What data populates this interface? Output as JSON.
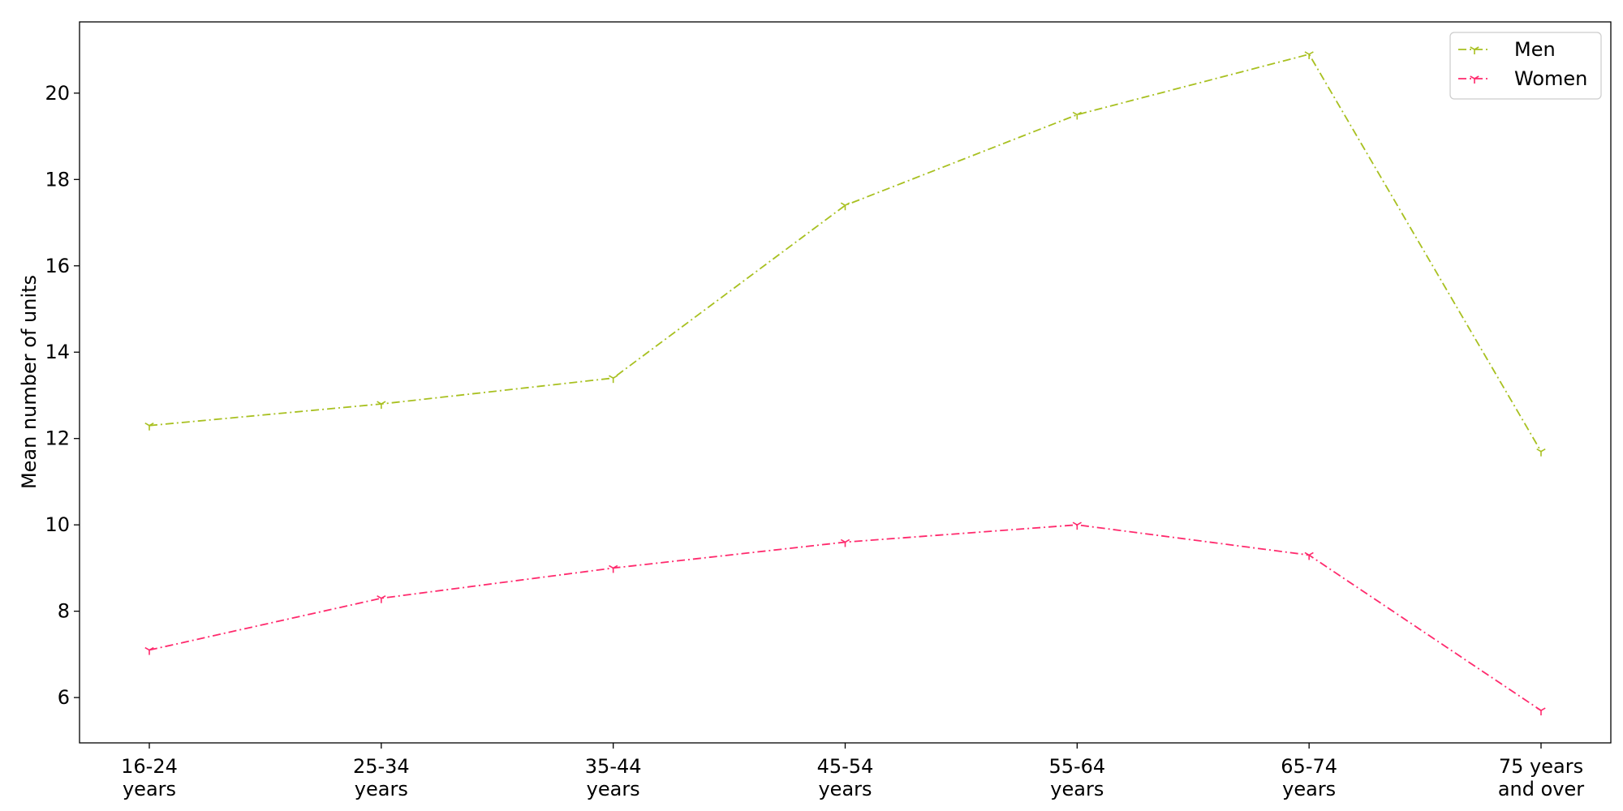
{
  "chart_data": {
    "type": "line",
    "title": "",
    "xlabel": "",
    "ylabel": "Mean number of units",
    "categories": [
      [
        "16-24",
        "years"
      ],
      [
        "25-34",
        "years"
      ],
      [
        "35-44",
        "years"
      ],
      [
        "45-54",
        "years"
      ],
      [
        "55-64",
        "years"
      ],
      [
        "65-74",
        "years"
      ],
      [
        "75 years",
        "and over"
      ]
    ],
    "ylim": [
      4.95,
      21.65
    ],
    "yticks": [
      6,
      8,
      10,
      12,
      14,
      16,
      18,
      20
    ],
    "grid": false,
    "legend_position": "top-right",
    "series": [
      {
        "name": "Men",
        "color": "#a8c020",
        "line_style": "dash-dot",
        "marker": "tri-down",
        "values": [
          12.3,
          12.8,
          13.4,
          17.4,
          19.5,
          20.9,
          11.7
        ]
      },
      {
        "name": "Women",
        "color": "#ff2a6d",
        "line_style": "dash-dot",
        "marker": "tri-down",
        "values": [
          7.1,
          8.3,
          9.0,
          9.6,
          10.0,
          9.3,
          5.7
        ]
      }
    ]
  }
}
